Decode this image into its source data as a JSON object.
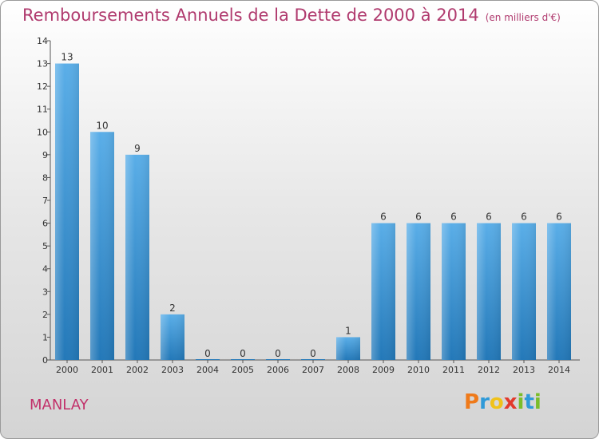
{
  "header": {
    "title": "Remboursements Annuels de la Dette de 2000 à 2014",
    "unit": "(en milliers d'€)"
  },
  "commune": "MANLAY",
  "logo": {
    "text": "Proxiti"
  },
  "colors": {
    "bar_light": "#5aaee8",
    "bar_dark": "#2378b8",
    "title": "#b03a6e",
    "commune": "#c2306a"
  },
  "chart_data": {
    "type": "bar",
    "title": "Remboursements Annuels de la Dette de 2000 à 2014",
    "subtitle": "(en milliers d'€)",
    "categories": [
      "2000",
      "2001",
      "2002",
      "2003",
      "2004",
      "2005",
      "2006",
      "2007",
      "2008",
      "2009",
      "2010",
      "2011",
      "2012",
      "2013",
      "2014"
    ],
    "values": [
      13,
      10,
      9,
      2,
      0,
      0,
      0,
      0,
      1,
      6,
      6,
      6,
      6,
      6,
      6
    ],
    "ylim": [
      0,
      14
    ],
    "yticks": [
      0,
      1,
      2,
      3,
      4,
      5,
      6,
      7,
      8,
      9,
      10,
      11,
      12,
      13,
      14
    ],
    "xlabel": "",
    "ylabel": "",
    "grid": false,
    "data_labels": true
  }
}
